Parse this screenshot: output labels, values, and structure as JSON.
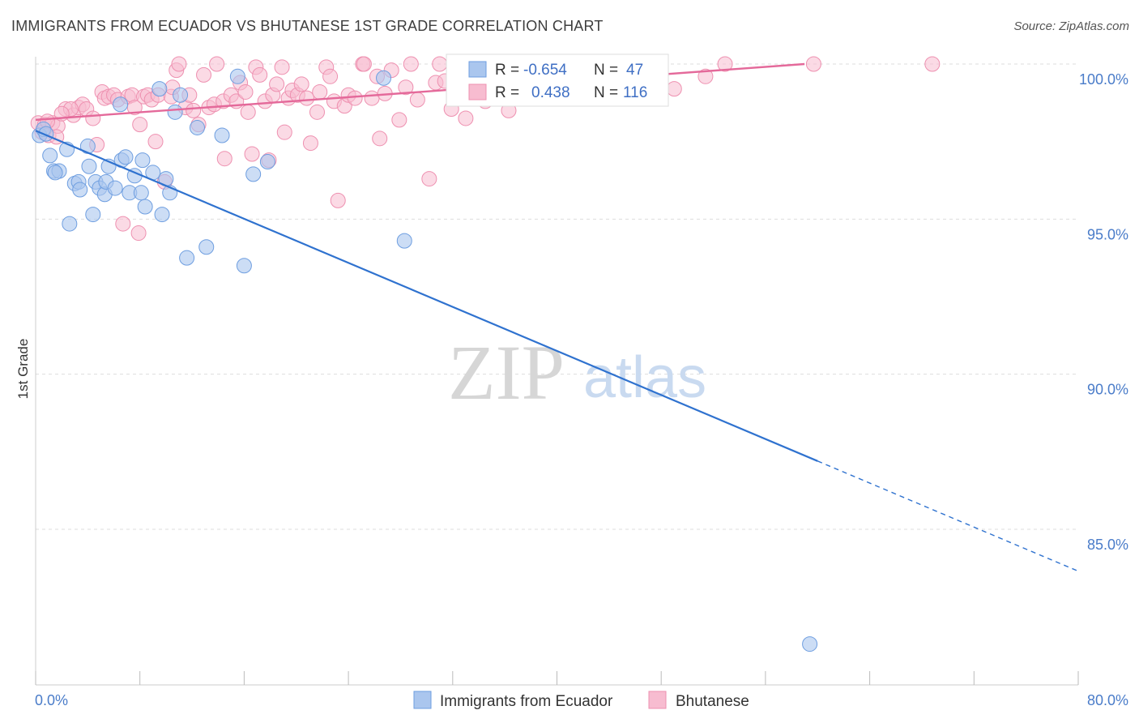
{
  "header": {
    "title": "IMMIGRANTS FROM ECUADOR VS BHUTANESE 1ST GRADE CORRELATION CHART",
    "source": "Source: ZipAtlas.com"
  },
  "watermark": {
    "zip": "ZIP",
    "atlas": "atlas"
  },
  "legend_box": {
    "rows": [
      {
        "r_label": "R =",
        "r_value": "-0.654",
        "n_label": "N =",
        "n_value": "47"
      },
      {
        "r_label": "R =",
        "r_value": "0.438",
        "n_label": "N =",
        "n_value": "116"
      }
    ]
  },
  "colors": {
    "blue_fill": "#aac6ee",
    "blue_stroke": "#6e9ee0",
    "blue_line": "#2f72cf",
    "pink_fill": "#f7bcd0",
    "pink_stroke": "#ee90b0",
    "pink_line": "#e4699a",
    "grid": "#dddddd",
    "tick_text": "#4a7cc9"
  },
  "chart_data": {
    "type": "scatter",
    "title": "IMMIGRANTS FROM ECUADOR VS BHUTANESE 1ST GRADE CORRELATION CHART",
    "xlabel": "",
    "ylabel": "1st Grade",
    "xlim": [
      0,
      80
    ],
    "ylim": [
      80.5,
      100.7
    ],
    "x_tick_labels": [
      "0.0%",
      "80.0%"
    ],
    "y_ticks": [
      {
        "value": 100,
        "label": "100.0%"
      },
      {
        "value": 95,
        "label": "95.0%"
      },
      {
        "value": 90,
        "label": "90.0%"
      },
      {
        "value": 85,
        "label": "85.0%"
      }
    ],
    "grid": true,
    "legend_position": "bottom",
    "series": [
      {
        "name": "Immigrants from Ecuador",
        "color": "#aac6ee",
        "R": -0.654,
        "N": 47,
        "trend": {
          "x_start": 0,
          "y_start": 97.85,
          "x_end": 60.0,
          "y_end": 87.2,
          "x_dash_end": 80.0,
          "y_dash_end": 83.65
        },
        "points": [
          [
            0.3,
            97.7
          ],
          [
            0.6,
            97.9
          ],
          [
            0.8,
            97.75
          ],
          [
            1.1,
            97.05
          ],
          [
            1.4,
            96.55
          ],
          [
            1.8,
            96.55
          ],
          [
            2.4,
            97.25
          ],
          [
            2.6,
            94.85
          ],
          [
            3.0,
            96.15
          ],
          [
            3.3,
            96.2
          ],
          [
            3.4,
            95.95
          ],
          [
            4.0,
            97.35
          ],
          [
            4.1,
            96.7
          ],
          [
            4.4,
            95.15
          ],
          [
            4.6,
            96.2
          ],
          [
            4.9,
            96.0
          ],
          [
            5.3,
            95.8
          ],
          [
            5.4,
            96.2
          ],
          [
            5.6,
            96.7
          ],
          [
            6.1,
            96.0
          ],
          [
            6.6,
            96.9
          ],
          [
            6.9,
            97.0
          ],
          [
            7.2,
            95.85
          ],
          [
            7.6,
            96.4
          ],
          [
            8.1,
            95.85
          ],
          [
            8.2,
            96.9
          ],
          [
            8.4,
            95.4
          ],
          [
            9.0,
            96.5
          ],
          [
            9.5,
            99.2
          ],
          [
            9.7,
            95.15
          ],
          [
            10.0,
            96.3
          ],
          [
            10.3,
            95.85
          ],
          [
            10.7,
            98.45
          ],
          [
            11.1,
            99.0
          ],
          [
            11.6,
            93.75
          ],
          [
            12.4,
            97.95
          ],
          [
            13.1,
            94.1
          ],
          [
            14.3,
            97.7
          ],
          [
            15.5,
            99.6
          ],
          [
            16.0,
            93.5
          ],
          [
            16.7,
            96.45
          ],
          [
            17.8,
            96.85
          ],
          [
            26.7,
            99.55
          ],
          [
            28.3,
            94.3
          ],
          [
            59.4,
            81.3
          ],
          [
            6.5,
            98.7
          ],
          [
            1.5,
            96.5
          ]
        ]
      },
      {
        "name": "Bhutanese",
        "color": "#f7bcd0",
        "R": 0.438,
        "N": 116,
        "trend": {
          "x_start": 0,
          "y_start": 98.2,
          "x_end": 59.0,
          "y_end": 100.0
        },
        "points": [
          [
            0.2,
            98.1
          ],
          [
            0.5,
            97.8
          ],
          [
            0.7,
            98.05
          ],
          [
            1.0,
            97.7
          ],
          [
            1.3,
            98.1
          ],
          [
            1.7,
            98.0
          ],
          [
            2.3,
            98.55
          ],
          [
            2.9,
            98.35
          ],
          [
            3.3,
            98.6
          ],
          [
            3.6,
            98.7
          ],
          [
            3.9,
            98.55
          ],
          [
            4.4,
            98.25
          ],
          [
            4.7,
            97.4
          ],
          [
            5.1,
            99.1
          ],
          [
            5.3,
            98.9
          ],
          [
            5.6,
            98.95
          ],
          [
            6.0,
            99.0
          ],
          [
            6.3,
            98.85
          ],
          [
            6.7,
            94.85
          ],
          [
            7.1,
            98.95
          ],
          [
            7.4,
            99.0
          ],
          [
            7.6,
            98.6
          ],
          [
            7.9,
            94.55
          ],
          [
            8.3,
            98.95
          ],
          [
            8.6,
            99.0
          ],
          [
            8.9,
            98.85
          ],
          [
            9.2,
            97.5
          ],
          [
            9.4,
            99.0
          ],
          [
            9.9,
            96.2
          ],
          [
            10.4,
            98.95
          ],
          [
            10.5,
            99.25
          ],
          [
            10.8,
            99.8
          ],
          [
            11.0,
            100.0
          ],
          [
            11.5,
            98.6
          ],
          [
            11.8,
            99.0
          ],
          [
            12.1,
            98.5
          ],
          [
            12.5,
            98.05
          ],
          [
            12.9,
            99.65
          ],
          [
            13.3,
            98.6
          ],
          [
            13.7,
            98.7
          ],
          [
            13.9,
            100.0
          ],
          [
            14.4,
            98.8
          ],
          [
            14.5,
            96.95
          ],
          [
            15.0,
            99.0
          ],
          [
            15.4,
            98.8
          ],
          [
            15.7,
            99.4
          ],
          [
            16.1,
            99.1
          ],
          [
            16.3,
            98.45
          ],
          [
            16.6,
            97.1
          ],
          [
            16.9,
            99.9
          ],
          [
            17.2,
            99.65
          ],
          [
            17.6,
            98.8
          ],
          [
            17.9,
            96.9
          ],
          [
            18.2,
            99.0
          ],
          [
            18.5,
            99.35
          ],
          [
            18.9,
            99.9
          ],
          [
            19.1,
            97.8
          ],
          [
            19.4,
            98.9
          ],
          [
            19.7,
            99.15
          ],
          [
            20.1,
            99.0
          ],
          [
            20.4,
            99.35
          ],
          [
            20.8,
            98.9
          ],
          [
            21.1,
            97.45
          ],
          [
            21.6,
            98.45
          ],
          [
            21.8,
            99.1
          ],
          [
            22.3,
            99.9
          ],
          [
            22.6,
            99.6
          ],
          [
            22.9,
            98.8
          ],
          [
            23.2,
            95.6
          ],
          [
            23.7,
            98.65
          ],
          [
            24.0,
            99.0
          ],
          [
            24.5,
            98.9
          ],
          [
            25.1,
            100.0
          ],
          [
            25.2,
            100.0
          ],
          [
            25.8,
            98.9
          ],
          [
            26.2,
            99.6
          ],
          [
            26.4,
            97.6
          ],
          [
            26.8,
            99.05
          ],
          [
            27.3,
            99.8
          ],
          [
            27.9,
            98.2
          ],
          [
            28.4,
            99.25
          ],
          [
            28.8,
            100.0
          ],
          [
            29.3,
            98.85
          ],
          [
            30.2,
            96.3
          ],
          [
            30.7,
            99.4
          ],
          [
            31.0,
            100.0
          ],
          [
            31.4,
            99.45
          ],
          [
            31.9,
            98.55
          ],
          [
            32.2,
            99.8
          ],
          [
            32.6,
            98.95
          ],
          [
            33.0,
            98.25
          ],
          [
            33.4,
            99.2
          ],
          [
            34.1,
            99.6
          ],
          [
            34.5,
            98.8
          ],
          [
            35.0,
            99.05
          ],
          [
            35.7,
            99.8
          ],
          [
            36.3,
            98.5
          ],
          [
            36.9,
            99.35
          ],
          [
            37.5,
            99.0
          ],
          [
            38.0,
            100.0
          ],
          [
            39.4,
            99.5
          ],
          [
            41.6,
            99.6
          ],
          [
            42.6,
            99.8
          ],
          [
            43.5,
            100.0
          ],
          [
            44.1,
            99.9
          ],
          [
            46.2,
            99.35
          ],
          [
            49.0,
            99.2
          ],
          [
            51.4,
            99.6
          ],
          [
            52.9,
            100.0
          ],
          [
            59.7,
            100.0
          ],
          [
            68.8,
            100.0
          ],
          [
            2.7,
            98.55
          ],
          [
            0.9,
            98.15
          ],
          [
            1.6,
            97.65
          ],
          [
            2.0,
            98.4
          ],
          [
            8.0,
            98.05
          ]
        ]
      }
    ]
  }
}
